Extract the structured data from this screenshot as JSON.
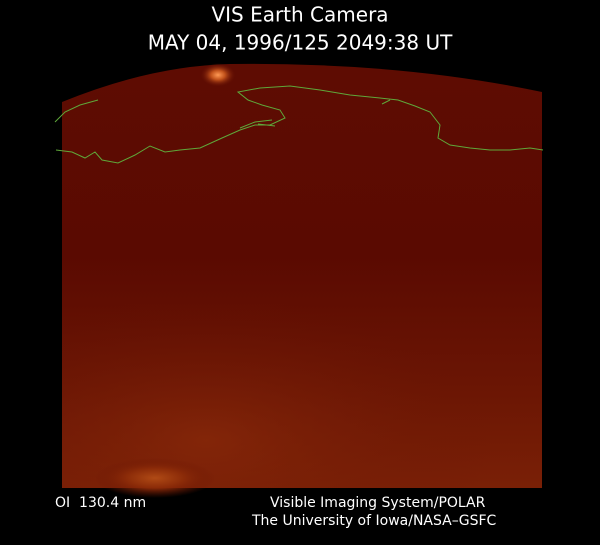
{
  "header": {
    "title": "VIS Earth Camera",
    "timestamp": "MAY 04, 1996/125 2049:38 UT"
  },
  "footer": {
    "filter": "OI  130.4 nm",
    "instrument": "Visible Imaging System/POLAR",
    "institution": "The University of Iowa/NASA–GSFC"
  }
}
